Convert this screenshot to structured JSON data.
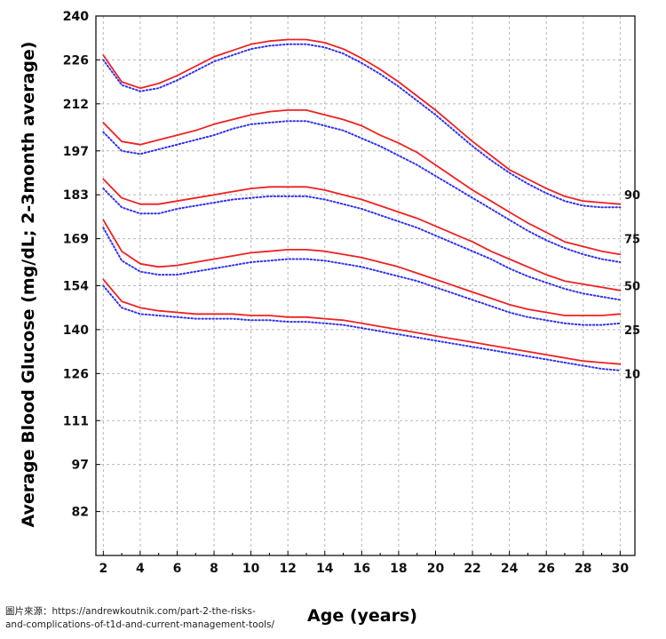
{
  "chart_data": {
    "type": "line",
    "xlabel": "Age (years)",
    "ylabel": "Average Blood Glucose (mg/dL; 2-3month average)",
    "x_ticks": [
      2,
      4,
      6,
      8,
      10,
      12,
      14,
      16,
      18,
      20,
      22,
      24,
      26,
      28,
      30
    ],
    "y_ticks": [
      82,
      97,
      111,
      126,
      140,
      154,
      169,
      183,
      197,
      212,
      226,
      240
    ],
    "xlim": [
      1.6,
      30.8
    ],
    "ylim": [
      68,
      240
    ],
    "grid": true,
    "x": [
      2,
      3,
      4,
      5,
      6,
      7,
      8,
      9,
      10,
      11,
      12,
      13,
      14,
      15,
      16,
      17,
      18,
      19,
      20,
      21,
      22,
      23,
      24,
      25,
      26,
      27,
      28,
      29,
      30
    ],
    "series": [
      {
        "name": "90",
        "style": "solid",
        "color": "#ee2222",
        "values": [
          227.5,
          219,
          217,
          218.5,
          221,
          224,
          227,
          229,
          231,
          232,
          232.5,
          232.5,
          231.5,
          229.5,
          226.5,
          223,
          219,
          214.5,
          210,
          205,
          200,
          195.5,
          191,
          188,
          185,
          182.5,
          181,
          180.5,
          180
        ]
      },
      {
        "name": "90",
        "style": "dotted",
        "color": "#3333ee",
        "values": [
          226,
          218,
          216,
          217,
          219.5,
          222.5,
          225.5,
          227.5,
          229.5,
          230.5,
          231,
          231,
          230,
          228,
          225,
          221.5,
          217.5,
          213,
          208.5,
          203.5,
          198.5,
          194,
          190,
          186.5,
          183.5,
          181,
          179.5,
          179,
          179
        ]
      },
      {
        "name": "75",
        "style": "solid",
        "color": "#ee2222",
        "values": [
          206,
          200,
          199,
          200.5,
          202,
          203.5,
          205.5,
          207,
          208.5,
          209.5,
          210,
          210,
          208.5,
          207,
          205,
          202,
          199.5,
          196.5,
          192.5,
          188.5,
          184.5,
          181,
          177.5,
          174,
          171,
          168,
          166.5,
          165,
          164
        ]
      },
      {
        "name": "75",
        "style": "dotted",
        "color": "#3333ee",
        "values": [
          203,
          197,
          196,
          197.5,
          199,
          200.5,
          202,
          204,
          205.5,
          206,
          206.5,
          206.5,
          205,
          203.5,
          201,
          198.5,
          195.5,
          192.5,
          189,
          185.5,
          182,
          178.5,
          175,
          171.5,
          168.5,
          166,
          164,
          162.5,
          161.5
        ]
      },
      {
        "name": "50",
        "style": "solid",
        "color": "#ee2222",
        "values": [
          188,
          182,
          180,
          180,
          181,
          182,
          183,
          184,
          185,
          185.5,
          185.5,
          185.5,
          184.5,
          183,
          181.5,
          179.5,
          177.5,
          175.5,
          173,
          170.5,
          168,
          165,
          162.5,
          160,
          157.5,
          155.5,
          154.5,
          153.5,
          152.5
        ]
      },
      {
        "name": "50",
        "style": "dotted",
        "color": "#3333ee",
        "values": [
          185,
          179,
          177,
          177,
          178.5,
          179.5,
          180.5,
          181.5,
          182,
          182.5,
          182.5,
          182.5,
          181.5,
          180,
          178.5,
          176.5,
          174.5,
          172.5,
          170,
          167.5,
          165,
          162.5,
          159.5,
          157,
          155,
          153,
          151.5,
          150.5,
          149.5
        ]
      },
      {
        "name": "25",
        "style": "solid",
        "color": "#ee2222",
        "values": [
          175,
          165,
          161,
          160,
          160.5,
          161.5,
          162.5,
          163.5,
          164.5,
          165,
          165.5,
          165.5,
          165,
          164,
          163,
          161.5,
          160,
          158,
          156,
          154,
          152,
          150,
          148,
          146.5,
          145.5,
          144.5,
          144.5,
          144.5,
          145
        ]
      },
      {
        "name": "25",
        "style": "dotted",
        "color": "#3333ee",
        "values": [
          172.5,
          162,
          158.5,
          157.5,
          157.5,
          158.5,
          159.5,
          160.5,
          161.5,
          162,
          162.5,
          162.5,
          162,
          161,
          160,
          158.5,
          157,
          155.5,
          153.5,
          151.5,
          149.5,
          147.5,
          145.5,
          144,
          143,
          142,
          141.5,
          141.5,
          142
        ]
      },
      {
        "name": "10",
        "style": "solid",
        "color": "#ee2222",
        "values": [
          156,
          149,
          147,
          146,
          145.5,
          145,
          145,
          145,
          144.5,
          144.5,
          144,
          144,
          143.5,
          143,
          142,
          141,
          140,
          139,
          138,
          137,
          136,
          135,
          134,
          133,
          132,
          131,
          130,
          129.5,
          129
        ]
      },
      {
        "name": "10",
        "style": "dotted",
        "color": "#3333ee",
        "values": [
          154,
          147,
          145,
          144.5,
          144,
          143.5,
          143.5,
          143.5,
          143,
          143,
          142.5,
          142.5,
          142,
          141.5,
          140.5,
          139.5,
          138.5,
          137.5,
          136.5,
          135.5,
          134.5,
          133.5,
          132.5,
          131.5,
          130.5,
          129.5,
          128.5,
          127.5,
          127
        ]
      }
    ],
    "percentile_labels": [
      {
        "text": "90",
        "y": 183
      },
      {
        "text": "75",
        "y": 169
      },
      {
        "text": "50",
        "y": 154
      },
      {
        "text": "25",
        "y": 140
      },
      {
        "text": "10",
        "y": 126
      }
    ]
  },
  "source": {
    "line1": "圖片來源：https://andrewkoutnik.com/part-2-the-risks-",
    "line2": "and-complications-of-t1d-and-current-management-tools/"
  }
}
